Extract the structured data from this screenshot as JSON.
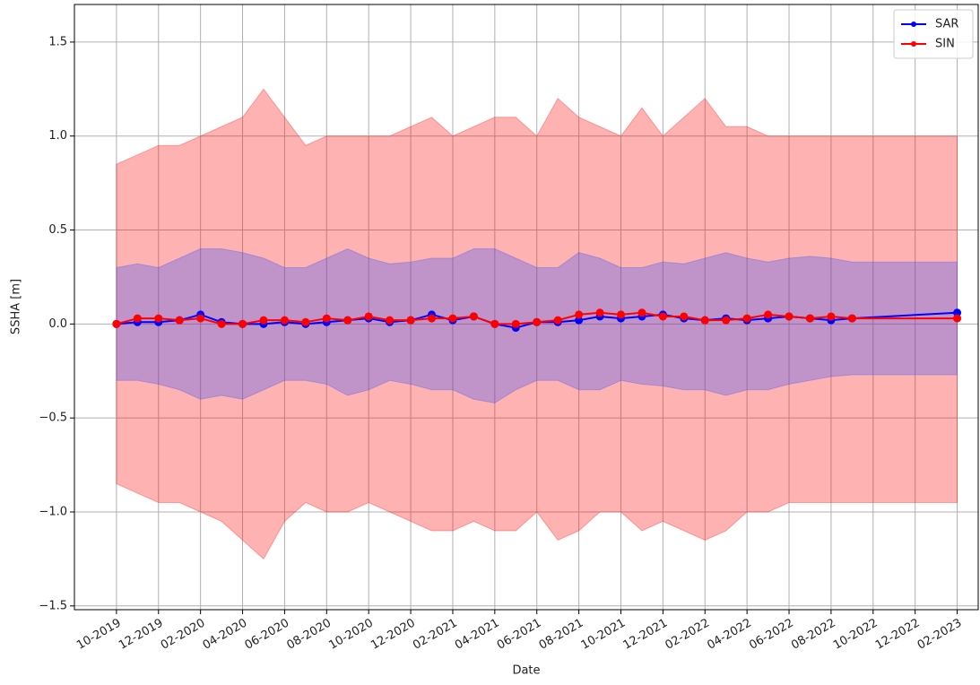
{
  "chart_data": {
    "type": "line",
    "xlabel": "Date",
    "ylabel": "SSHA [m]",
    "x": [
      "10-2019",
      "11-2019",
      "12-2019",
      "01-2020",
      "02-2020",
      "03-2020",
      "04-2020",
      "05-2020",
      "06-2020",
      "07-2020",
      "08-2020",
      "09-2020",
      "10-2020",
      "11-2020",
      "12-2020",
      "01-2021",
      "02-2021",
      "03-2021",
      "04-2021",
      "05-2021",
      "06-2021",
      "07-2021",
      "08-2021",
      "09-2021",
      "10-2021",
      "11-2021",
      "12-2021",
      "01-2022",
      "02-2022",
      "03-2022",
      "04-2022",
      "05-2022",
      "06-2022",
      "07-2022",
      "08-2022",
      "09-2022",
      "02-2023"
    ],
    "series": [
      {
        "name": "SAR",
        "color": "#0000ff",
        "band_color": "#3050ff",
        "values": [
          0.0,
          0.01,
          0.01,
          0.02,
          0.05,
          0.01,
          0.0,
          0.0,
          0.01,
          0.0,
          0.01,
          0.02,
          0.03,
          0.01,
          0.02,
          0.05,
          0.02,
          0.04,
          0.0,
          -0.02,
          0.01,
          0.01,
          0.02,
          0.04,
          0.03,
          0.04,
          0.05,
          0.03,
          0.02,
          0.03,
          0.02,
          0.03,
          0.04,
          0.03,
          0.02,
          0.03,
          0.06
        ],
        "upper": [
          0.3,
          0.32,
          0.3,
          0.35,
          0.4,
          0.4,
          0.38,
          0.35,
          0.3,
          0.3,
          0.35,
          0.4,
          0.35,
          0.32,
          0.33,
          0.35,
          0.35,
          0.4,
          0.4,
          0.35,
          0.3,
          0.3,
          0.38,
          0.35,
          0.3,
          0.3,
          0.33,
          0.32,
          0.35,
          0.38,
          0.35,
          0.33,
          0.35,
          0.36,
          0.35,
          0.33,
          0.33
        ],
        "lower": [
          -0.3,
          -0.3,
          -0.32,
          -0.35,
          -0.4,
          -0.38,
          -0.4,
          -0.35,
          -0.3,
          -0.3,
          -0.32,
          -0.38,
          -0.35,
          -0.3,
          -0.32,
          -0.35,
          -0.35,
          -0.4,
          -0.42,
          -0.35,
          -0.3,
          -0.3,
          -0.35,
          -0.35,
          -0.3,
          -0.32,
          -0.33,
          -0.35,
          -0.35,
          -0.38,
          -0.35,
          -0.35,
          -0.32,
          -0.3,
          -0.28,
          -0.27,
          -0.27
        ]
      },
      {
        "name": "SIN",
        "color": "#ff0000",
        "band_color": "#ff0000",
        "values": [
          0.0,
          0.03,
          0.03,
          0.02,
          0.03,
          0.0,
          0.0,
          0.02,
          0.02,
          0.01,
          0.03,
          0.02,
          0.04,
          0.02,
          0.02,
          0.03,
          0.03,
          0.04,
          0.0,
          0.0,
          0.01,
          0.02,
          0.05,
          0.06,
          0.05,
          0.06,
          0.04,
          0.04,
          0.02,
          0.02,
          0.03,
          0.05,
          0.04,
          0.03,
          0.04,
          0.03,
          0.03
        ],
        "upper": [
          0.85,
          0.9,
          0.95,
          0.95,
          1.0,
          1.05,
          1.1,
          1.25,
          1.1,
          0.95,
          1.0,
          1.0,
          1.0,
          1.0,
          1.05,
          1.1,
          1.0,
          1.05,
          1.1,
          1.1,
          1.0,
          1.2,
          1.1,
          1.05,
          1.0,
          1.15,
          1.0,
          1.1,
          1.2,
          1.05,
          1.05,
          1.0,
          1.0,
          1.0,
          1.0,
          1.0,
          1.0
        ],
        "lower": [
          -0.85,
          -0.9,
          -0.95,
          -0.95,
          -1.0,
          -1.05,
          -1.15,
          -1.25,
          -1.05,
          -0.95,
          -1.0,
          -1.0,
          -0.95,
          -1.0,
          -1.05,
          -1.1,
          -1.1,
          -1.05,
          -1.1,
          -1.1,
          -1.0,
          -1.15,
          -1.1,
          -1.0,
          -1.0,
          -1.1,
          -1.05,
          -1.1,
          -1.15,
          -1.1,
          -1.0,
          -1.0,
          -0.95,
          -0.95,
          -0.95,
          -0.95,
          -0.95
        ]
      }
    ],
    "xlim": [
      "08-2019",
      "03-2023"
    ],
    "xticks": [
      "10-2019",
      "12-2019",
      "02-2020",
      "04-2020",
      "06-2020",
      "08-2020",
      "10-2020",
      "12-2020",
      "02-2021",
      "04-2021",
      "06-2021",
      "08-2021",
      "10-2021",
      "12-2021",
      "02-2022",
      "04-2022",
      "06-2022",
      "08-2022",
      "10-2022",
      "12-2022",
      "02-2023"
    ],
    "ylim": [
      -1.52,
      1.7
    ],
    "yticks": [
      {
        "value": -1.5,
        "label": "−1.5"
      },
      {
        "value": -1.0,
        "label": "−1.0"
      },
      {
        "value": -0.5,
        "label": "−0.5"
      },
      {
        "value": 0,
        "label": "0.0"
      },
      0.5,
      {
        "value": 1.0,
        "label": "1.0"
      },
      1.5
    ],
    "grid": true,
    "legend": "upper right"
  }
}
